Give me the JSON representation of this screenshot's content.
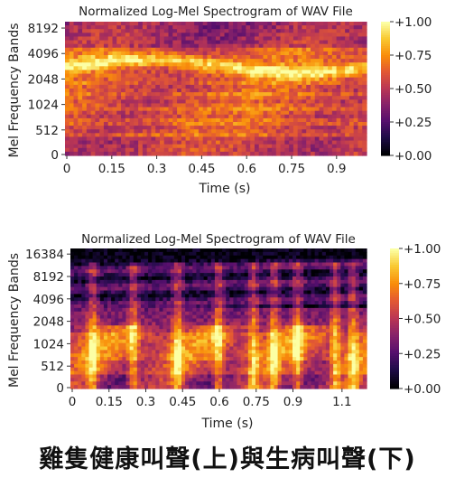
{
  "chart_data": [
    {
      "type": "heatmap",
      "title": "Normalized Log-Mel Spectrogram of WAV File",
      "xlabel": "Time (s)",
      "ylabel": "Mel Frequency Bands",
      "x_ticks": [
        "0",
        "0.15",
        "0.3",
        "0.45",
        "0.6",
        "0.75",
        "0.9"
      ],
      "y_ticks": [
        "0",
        "512",
        "1024",
        "2048",
        "4096",
        "8192"
      ],
      "colorbar_ticks": [
        "+0.00",
        "+0.25",
        "+0.50",
        "+0.75",
        "+1.00"
      ],
      "xlim": [
        0,
        1.0
      ],
      "colorbar_range": [
        0,
        1
      ],
      "colormap": "inferno",
      "grid": false,
      "description_level": "energy concentrated broadly across bands with a bright band near 2048-4096"
    },
    {
      "type": "heatmap",
      "title": "Normalized Log-Mel Spectrogram of WAV File",
      "xlabel": "Time (s)",
      "ylabel": "Mel Frequency Bands",
      "x_ticks": [
        "0",
        "0.15",
        "0.3",
        "0.45",
        "0.6",
        "0.75",
        "0.9",
        "1.1"
      ],
      "y_ticks": [
        "0",
        "512",
        "1024",
        "2048",
        "4096",
        "8192",
        "16384"
      ],
      "colorbar_ticks": [
        "+0.00",
        "+0.25",
        "+0.50",
        "+0.75",
        "+1.00"
      ],
      "xlim": [
        0,
        1.2
      ],
      "colorbar_range": [
        0,
        1
      ],
      "colormap": "inferno",
      "grid": false
    }
  ],
  "caption": "雞隻健康叫聲(上)與生病叫聲(下)",
  "colors": {
    "inferno_dark": "#000004",
    "inferno_purple": "#57106e",
    "inferno_red": "#bc3754",
    "inferno_orange": "#f98e09",
    "inferno_yellow": "#fcffa4"
  }
}
